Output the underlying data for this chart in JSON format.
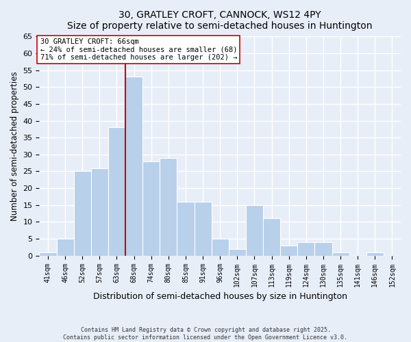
{
  "title": "30, GRATLEY CROFT, CANNOCK, WS12 4PY",
  "subtitle": "Size of property relative to semi-detached houses in Huntington",
  "xlabel": "Distribution of semi-detached houses by size in Huntington",
  "ylabel": "Number of semi-detached properties",
  "bin_labels": [
    "41sqm",
    "46sqm",
    "52sqm",
    "57sqm",
    "63sqm",
    "68sqm",
    "74sqm",
    "80sqm",
    "85sqm",
    "91sqm",
    "96sqm",
    "102sqm",
    "107sqm",
    "113sqm",
    "119sqm",
    "124sqm",
    "130sqm",
    "135sqm",
    "141sqm",
    "146sqm",
    "152sqm"
  ],
  "bar_values": [
    1,
    5,
    25,
    26,
    38,
    53,
    28,
    29,
    16,
    16,
    5,
    2,
    15,
    11,
    3,
    4,
    4,
    1,
    0,
    1,
    0
  ],
  "bar_color": "#b8d0ea",
  "vline_color": "#cc0000",
  "vline_x_index": 5,
  "ylim": [
    0,
    65
  ],
  "yticks": [
    0,
    5,
    10,
    15,
    20,
    25,
    30,
    35,
    40,
    45,
    50,
    55,
    60,
    65
  ],
  "annotation_title": "30 GRATLEY CROFT: 66sqm",
  "annotation_line1": "← 24% of semi-detached houses are smaller (68)",
  "annotation_line2": "71% of semi-detached houses are larger (202) →",
  "annotation_box_color": "#ffffff",
  "annotation_box_edge": "#cc0000",
  "footer1": "Contains HM Land Registry data © Crown copyright and database right 2025.",
  "footer2": "Contains public sector information licensed under the Open Government Licence v3.0.",
  "bg_color": "#e8eef8",
  "grid_color": "#ffffff"
}
